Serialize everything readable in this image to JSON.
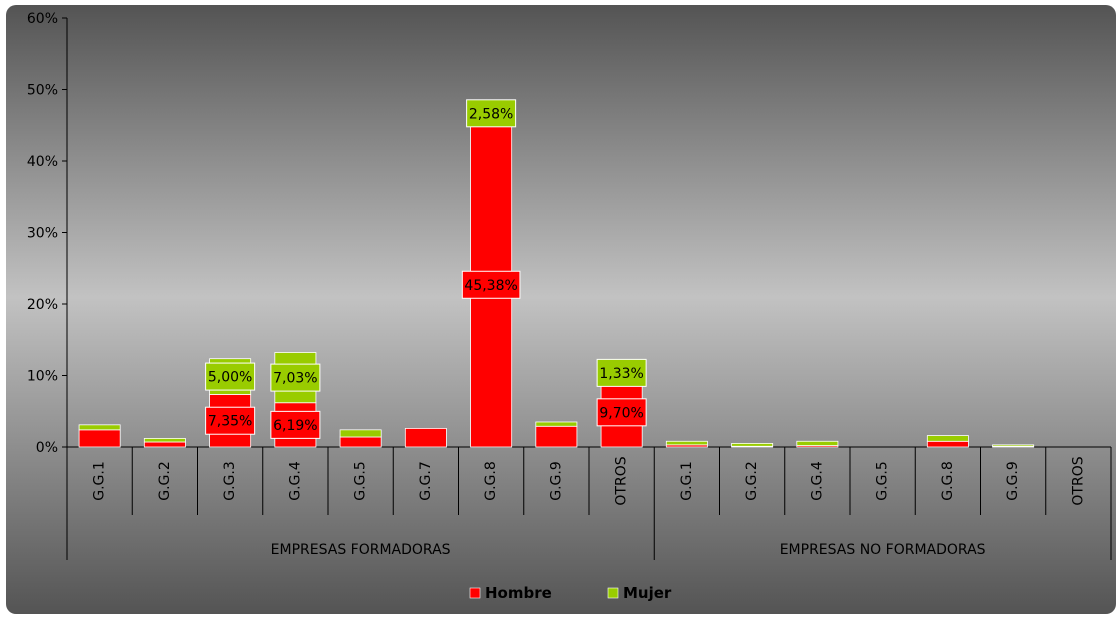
{
  "chart_data": {
    "type": "bar",
    "stacked": true,
    "y_tick_labels": [
      "0%",
      "10%",
      "20%",
      "30%",
      "40%",
      "50%",
      "60%"
    ],
    "ylim": [
      0,
      60
    ],
    "groups": [
      {
        "label": "EMPRESAS FORMADORAS",
        "categories": [
          "G.G.1",
          "G.G.2",
          "G.G.3",
          "G.G.4",
          "G.G.5",
          "G.G.7",
          "G.G.8",
          "G.G.9",
          "OTROS"
        ]
      },
      {
        "label": "EMPRESAS NO FORMADORAS",
        "categories": [
          "G.G.1",
          "G.G.2",
          "G.G.4",
          "G.G.5",
          "G.G.8",
          "G.G.9",
          "OTROS"
        ]
      }
    ],
    "series": [
      {
        "name": "Hombre",
        "color": "#ff0000",
        "values": [
          2.4,
          0.7,
          7.35,
          6.19,
          1.4,
          2.6,
          45.38,
          2.9,
          9.7,
          0.3,
          0.1,
          0.2,
          0.0,
          0.8,
          0.1,
          0.0
        ],
        "data_labels": [
          "",
          "",
          "7,35%",
          "6,19%",
          "",
          "",
          "45,38%",
          "",
          "9,70%",
          "",
          "",
          "",
          "",
          "",
          "",
          ""
        ]
      },
      {
        "name": "Mujer",
        "color": "#99cc00",
        "values": [
          0.7,
          0.5,
          5.0,
          7.03,
          1.0,
          0.0,
          2.58,
          0.6,
          1.33,
          0.5,
          0.4,
          0.6,
          0.0,
          0.8,
          0.2,
          0.0
        ],
        "data_labels": [
          "",
          "",
          "5,00%",
          "7,03%",
          "",
          "",
          "2,58%",
          "",
          "1,33%",
          "",
          "",
          "",
          "",
          "",
          "",
          ""
        ]
      }
    ],
    "legend_position": "bottom",
    "grid": false
  }
}
